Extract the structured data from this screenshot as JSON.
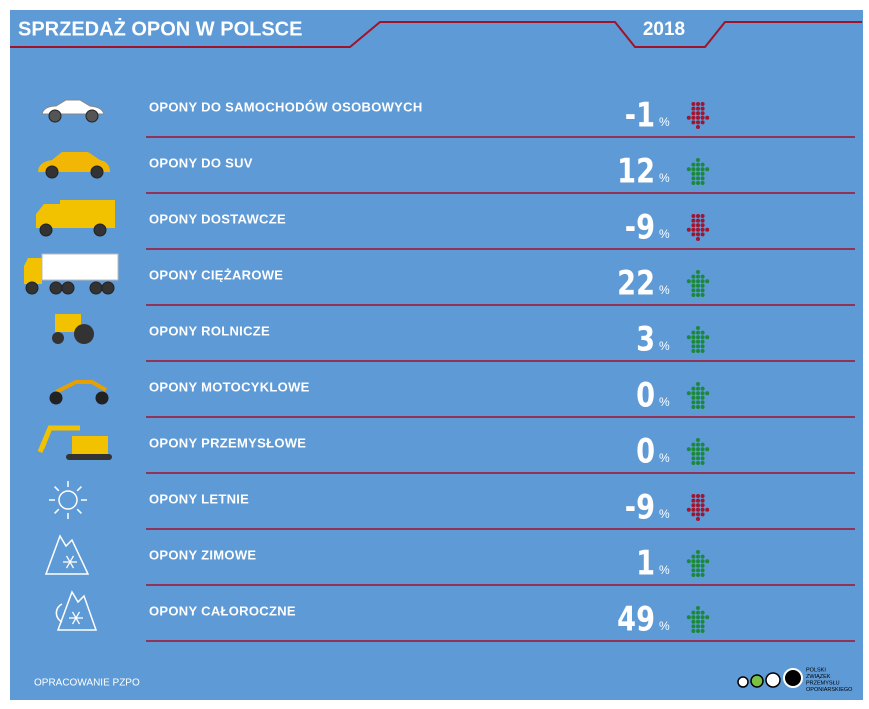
{
  "header": {
    "title": "SPRZEDAŻ OPON W POLSCE",
    "year": "2018"
  },
  "rows": [
    {
      "label": "OPONY DO SAMOCHODÓW OSOBOWYCH",
      "value": -1,
      "unit": "%",
      "arrow": "down"
    },
    {
      "label": "OPONY DO SUV",
      "value": 12,
      "unit": "%",
      "arrow": "up"
    },
    {
      "label": "OPONY DOSTAWCZE",
      "value": -9,
      "unit": "%",
      "arrow": "down"
    },
    {
      "label": "OPONY CIĘŻAROWE",
      "value": 22,
      "unit": "%",
      "arrow": "up"
    },
    {
      "label": "OPONY ROLNICZE",
      "value": 3,
      "unit": "%",
      "arrow": "up"
    },
    {
      "label": "OPONY MOTOCYKLOWE",
      "value": 0,
      "unit": "%",
      "arrow": "up"
    },
    {
      "label": "OPONY PRZEMYSŁOWE",
      "value": 0,
      "unit": "%",
      "arrow": "up"
    },
    {
      "label": "OPONY LETNIE",
      "value": -9,
      "unit": "%",
      "arrow": "down"
    },
    {
      "label": "OPONY ZIMOWE",
      "value": 1,
      "unit": "%",
      "arrow": "up"
    },
    {
      "label": "OPONY CAŁOROCZNE",
      "value": 49,
      "unit": "%",
      "arrow": "up"
    }
  ],
  "footer": {
    "source": "OPRACOWANIE PZPO",
    "logo": [
      "POLSKI",
      "ZWIĄZEK",
      "PRZEMYSŁU",
      "OPONIARSKIEGO"
    ]
  }
}
